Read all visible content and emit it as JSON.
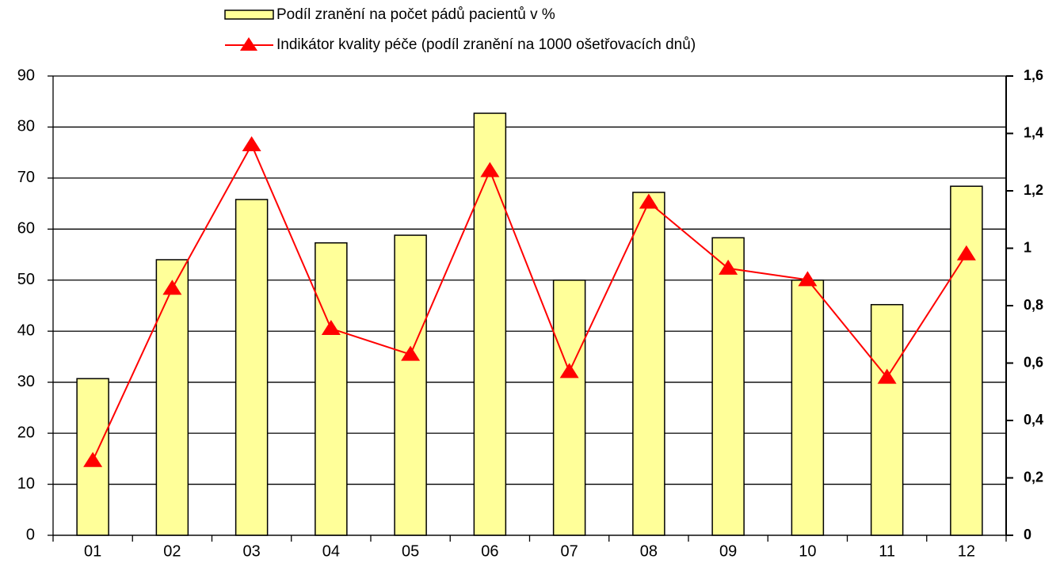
{
  "chart_data": {
    "type": "bar",
    "categories": [
      "01",
      "02",
      "03",
      "04",
      "05",
      "06",
      "07",
      "08",
      "09",
      "10",
      "11",
      "12"
    ],
    "series": [
      {
        "name": "Podíl zranění na počet pádů pacientů v %",
        "type": "bar",
        "color": "#ffff99",
        "values": [
          30.7,
          54.0,
          65.8,
          57.3,
          58.8,
          82.7,
          50.0,
          67.2,
          58.3,
          50.0,
          45.2,
          68.4
        ]
      },
      {
        "name": "Indikátor kvality péče (podíl zranění na 1000 ošetřovacích dnů)",
        "type": "line",
        "axis": "y2",
        "color": "#ff0000",
        "values": [
          0.26,
          0.86,
          1.36,
          0.72,
          0.63,
          1.27,
          0.57,
          1.16,
          0.93,
          0.89,
          0.55,
          0.98
        ]
      }
    ],
    "ylim": [
      0,
      90
    ],
    "yticks": [
      0,
      10,
      20,
      30,
      40,
      50,
      60,
      70,
      80,
      90
    ],
    "y2lim": [
      0,
      1.6
    ],
    "y2ticks": [
      0,
      {
        "value": 0.2,
        "label": "0,2"
      },
      {
        "value": 0.4,
        "label": "0,4"
      },
      {
        "value": 0.6,
        "label": "0,6"
      },
      {
        "value": 0.8,
        "label": "0,8"
      },
      1,
      {
        "value": 1.2,
        "label": "1,2"
      },
      {
        "value": 1.4,
        "label": "1,4"
      },
      {
        "value": 1.6,
        "label": "1,6"
      }
    ],
    "grid": true
  }
}
